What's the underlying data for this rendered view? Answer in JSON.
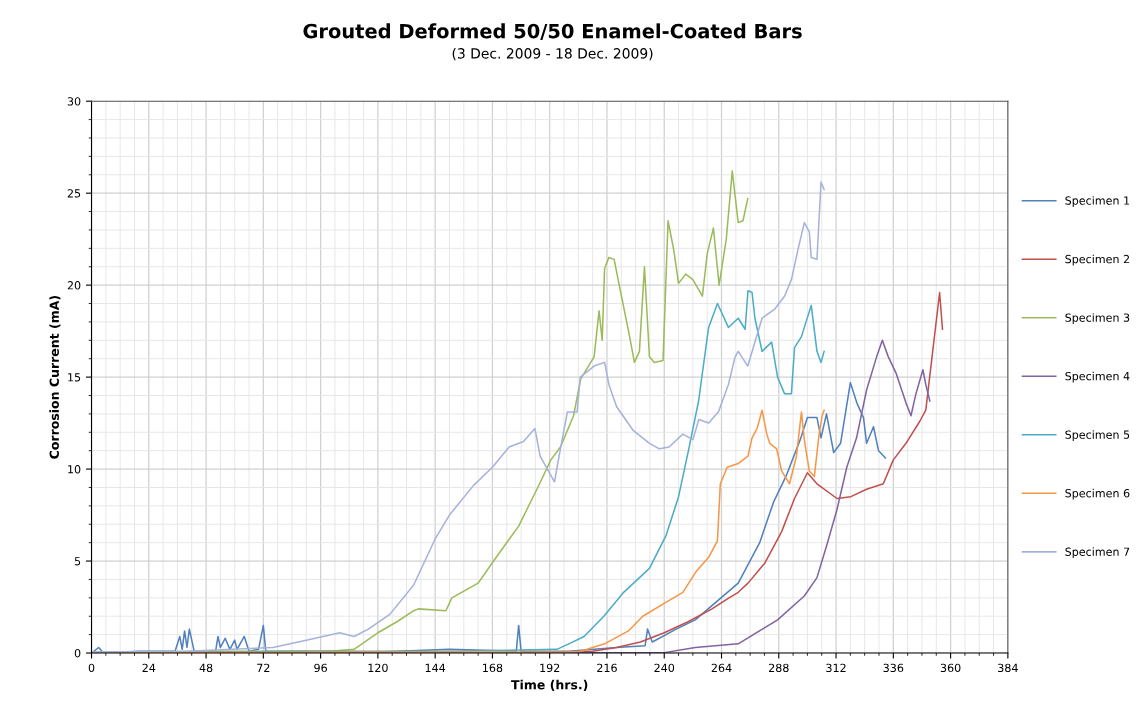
{
  "chart_data": {
    "type": "line",
    "title": "Grouted Deformed 50/50 Enamel-Coated Bars",
    "subtitle": "(3 Dec. 2009 - 18 Dec. 2009)",
    "xlabel": "Time (hrs.)",
    "ylabel": "Corrosion Current (mA)",
    "xlim": [
      0,
      384
    ],
    "xticks": [
      0,
      24,
      48,
      72,
      96,
      120,
      144,
      168,
      192,
      216,
      240,
      264,
      288,
      312,
      336,
      360,
      384
    ],
    "ylim": [
      0,
      30
    ],
    "yticks": [
      0,
      5,
      10,
      15,
      20,
      25,
      30
    ],
    "grid": true,
    "legend": "right",
    "marker": "none",
    "line_style": "solid",
    "series": [
      {
        "name": "Specimen 1",
        "color": "#4f81bd",
        "x": [
          0,
          3,
          5,
          20,
          35,
          37,
          38,
          39,
          40,
          41,
          43,
          52,
          53,
          54,
          56,
          58,
          60,
          61,
          64,
          66,
          70,
          72,
          73,
          100,
          120,
          150,
          178,
          179,
          180,
          200,
          220,
          232,
          233,
          235,
          245,
          253,
          271,
          280,
          285.8,
          291,
          297,
          300,
          304,
          305.7,
          308,
          311,
          313.9,
          318,
          320.7,
          323.5,
          324.8,
          327.7,
          329.8,
          332.7
        ],
        "values": [
          0,
          0.3,
          0,
          0.1,
          0.1,
          0.9,
          0.2,
          1.2,
          0.3,
          1.3,
          0.1,
          0.1,
          0.9,
          0.3,
          0.8,
          0.2,
          0.7,
          0.2,
          0.9,
          0.1,
          0.2,
          1.5,
          0.1,
          0.1,
          0.05,
          0.2,
          0.1,
          1.5,
          0.1,
          0.1,
          0.3,
          0.4,
          1.3,
          0.6,
          1.3,
          1.8,
          3.8,
          6.0,
          8.2,
          9.6,
          11.6,
          12.8,
          12.8,
          11.7,
          13.0,
          10.9,
          11.4,
          14.7,
          13.6,
          12.8,
          11.4,
          12.3,
          11.0,
          10.6
        ]
      },
      {
        "name": "Specimen 2",
        "color": "#c0504d",
        "x": [
          0,
          200,
          210,
          220,
          230,
          240,
          250,
          260,
          266,
          271,
          275.1,
          282.2,
          289.2,
          294.6,
          300,
          304,
          312.4,
          318.2,
          324.8,
          331.8,
          336,
          341.3,
          347.1,
          349.6,
          352.5,
          355.4,
          356.6
        ],
        "values": [
          0,
          0.02,
          0.1,
          0.3,
          0.6,
          1.1,
          1.7,
          2.4,
          2.9,
          3.3,
          3.8,
          4.9,
          6.6,
          8.4,
          9.8,
          9.2,
          8.4,
          8.5,
          8.9,
          9.2,
          10.5,
          11.4,
          12.6,
          13.2,
          16.4,
          19.6,
          17.6
        ]
      },
      {
        "name": "Specimen 3",
        "color": "#9bbb59",
        "x": [
          0,
          50,
          100,
          110,
          120,
          128,
          135,
          137,
          148.5,
          151,
          162,
          169,
          179,
          187,
          192.5,
          196.5,
          202,
          205,
          210.6,
          212.7,
          214,
          215,
          216.8,
          219,
          221,
          225.5,
          227.5,
          229.6,
          231.7,
          233.8,
          235.8,
          239.5,
          241.6,
          244,
          246,
          249,
          252,
          256,
          258,
          260.6,
          263,
          266,
          268.5,
          271,
          273,
          275
        ],
        "values": [
          0.05,
          0.1,
          0.1,
          0.2,
          1.1,
          1.7,
          2.3,
          2.4,
          2.3,
          3.0,
          3.8,
          5.1,
          6.9,
          9.0,
          10.5,
          11.2,
          12.9,
          14.9,
          16.1,
          18.6,
          17.0,
          20.9,
          21.5,
          21.4,
          20.1,
          17.2,
          15.8,
          16.4,
          21.0,
          16.1,
          15.8,
          15.9,
          23.5,
          21.9,
          20.1,
          20.6,
          20.3,
          19.4,
          21.7,
          23.1,
          20.0,
          22.5,
          26.2,
          23.4,
          23.5,
          24.7
        ]
      },
      {
        "name": "Specimen 4",
        "color": "#8064a2",
        "x": [
          0,
          240,
          253,
          271,
          287.5,
          298.7,
          304,
          308.2,
          312.4,
          316.5,
          320.6,
          324.8,
          329,
          331.4,
          333.9,
          337.2,
          341.3,
          343.4,
          345.5,
          348.4,
          349.6,
          351.3
        ],
        "values": [
          0,
          0.02,
          0.3,
          0.5,
          1.8,
          3.1,
          4.1,
          5.9,
          7.8,
          10.1,
          11.7,
          14.3,
          16.1,
          17.0,
          16.1,
          15.2,
          13.6,
          12.9,
          14.1,
          15.4,
          14.6,
          13.7
        ]
      },
      {
        "name": "Specimen 5",
        "color": "#4bacc6",
        "x": [
          0,
          100,
          150,
          195,
          200,
          206.4,
          214.7,
          223,
          233.8,
          240.8,
          246,
          250.3,
          254.4,
          258.6,
          262.3,
          266.9,
          271,
          273.9,
          275.1,
          276.8,
          278,
          281,
          285,
          287.5,
          290.4,
          293.3,
          294.6,
          297.5,
          301.6,
          304,
          305.7,
          307
        ],
        "values": [
          0,
          0.1,
          0.1,
          0.2,
          0.5,
          0.9,
          2.0,
          3.3,
          4.6,
          6.4,
          8.5,
          11.1,
          13.7,
          17.7,
          19.0,
          17.7,
          18.2,
          17.6,
          19.7,
          19.6,
          18.2,
          16.4,
          16.9,
          15.0,
          14.1,
          14.1,
          16.6,
          17.2,
          18.9,
          16.4,
          15.8,
          16.4
        ]
      },
      {
        "name": "Specimen 6",
        "color": "#f79646",
        "x": [
          0,
          100,
          200,
          205,
          215,
          225,
          231,
          240,
          247.8,
          253.2,
          258.6,
          262.3,
          263.5,
          266.4,
          271,
          275.1,
          276.8,
          278.9,
          281,
          283,
          284.2,
          287.1,
          289.2,
          292.5,
          295.4,
          297.5,
          298.7,
          300.8,
          302.9,
          304.9,
          306.2,
          307
        ],
        "values": [
          0,
          0.05,
          0.05,
          0.1,
          0.5,
          1.2,
          2.0,
          2.7,
          3.3,
          4.4,
          5.2,
          6.1,
          9.2,
          10.1,
          10.3,
          10.7,
          11.7,
          12.2,
          13.2,
          11.9,
          11.4,
          11.1,
          9.9,
          9.2,
          10.7,
          13.1,
          11.6,
          9.9,
          9.6,
          11.9,
          12.9,
          13.2
        ]
      },
      {
        "name": "Specimen 7",
        "color": "#a5b2dc",
        "x": [
          0,
          40,
          76,
          90,
          104,
          110,
          116,
          125,
          135,
          144,
          150,
          160,
          168,
          175,
          181,
          185.8,
          188,
          194,
          196.5,
          199.4,
          203.5,
          204.8,
          210.6,
          215,
          216.8,
          220,
          227,
          233.8,
          238,
          242,
          247.8,
          252,
          254.5,
          258.6,
          262.7,
          266.9,
          269.7,
          271,
          275,
          281,
          286.3,
          290.4,
          293.3,
          296,
          298.7,
          300.8,
          301.6,
          304,
          305.7,
          307
        ],
        "values": [
          0.05,
          0.1,
          0.3,
          0.7,
          1.1,
          0.9,
          1.3,
          2.1,
          3.7,
          6.2,
          7.5,
          9.1,
          10.1,
          11.2,
          11.5,
          12.2,
          10.7,
          9.3,
          11.1,
          13.1,
          13.1,
          15.0,
          15.6,
          15.8,
          14.6,
          13.4,
          12.1,
          11.4,
          11.1,
          11.2,
          11.9,
          11.6,
          12.7,
          12.5,
          13.1,
          14.6,
          16.1,
          16.4,
          15.6,
          18.2,
          18.7,
          19.4,
          20.3,
          21.9,
          23.4,
          22.9,
          21.5,
          21.4,
          25.6,
          25.2
        ]
      }
    ]
  }
}
